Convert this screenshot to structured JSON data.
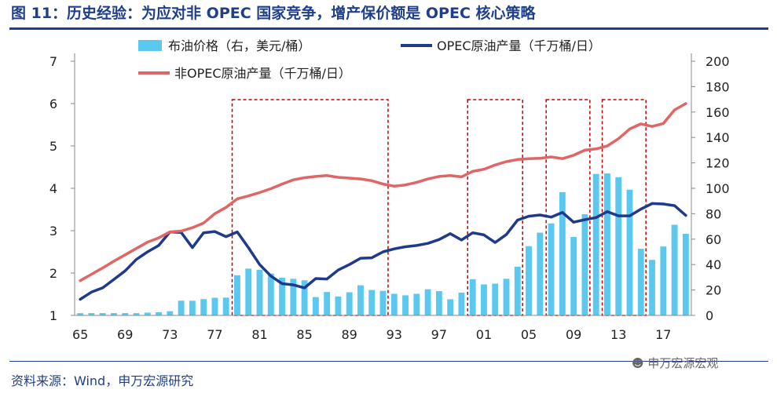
{
  "title": "图 11：历史经验：为应对非 OPEC 国家竞争，增产保价额是 OPEC 核心策略",
  "source": "资料来源：Wind，申万宏源研究",
  "watermark": "申万宏源宏观",
  "chart_data": {
    "type": "bar+line",
    "x": [
      1965,
      1966,
      1967,
      1968,
      1969,
      1970,
      1971,
      1972,
      1973,
      1974,
      1975,
      1976,
      1977,
      1978,
      1979,
      1980,
      1981,
      1982,
      1983,
      1984,
      1985,
      1986,
      1987,
      1988,
      1989,
      1990,
      1991,
      1992,
      1993,
      1994,
      1995,
      1996,
      1997,
      1998,
      1999,
      2000,
      2001,
      2002,
      2003,
      2004,
      2005,
      2006,
      2007,
      2008,
      2009,
      2010,
      2011,
      2012,
      2013,
      2014,
      2015,
      2016,
      2017,
      2018,
      2019
    ],
    "x_tick_labels": [
      "65",
      "69",
      "73",
      "77",
      "81",
      "85",
      "89",
      "93",
      "97",
      "01",
      "05",
      "09",
      "13",
      "17"
    ],
    "left_axis": {
      "min": 1,
      "max": 7,
      "ticks": [
        "1",
        "2",
        "3",
        "4",
        "5",
        "6",
        "7"
      ]
    },
    "right_axis": {
      "min": 0,
      "max": 200,
      "ticks": [
        "0",
        "20",
        "40",
        "60",
        "80",
        "100",
        "120",
        "140",
        "160",
        "180",
        "200"
      ]
    },
    "series": [
      {
        "name": "布油价格（右，美元/桶）",
        "type": "bar",
        "axis": "right",
        "color": "#5bc8f0",
        "values": [
          1.8,
          1.8,
          1.8,
          1.8,
          1.8,
          1.8,
          2.2,
          2.5,
          3.3,
          11.6,
          11.5,
          12.8,
          13.9,
          14.0,
          31.6,
          36.8,
          35.9,
          32.9,
          29.6,
          28.8,
          27.6,
          14.4,
          18.4,
          14.9,
          18.2,
          23.7,
          20.0,
          19.3,
          17.0,
          15.8,
          17.0,
          20.6,
          19.1,
          12.7,
          17.9,
          28.5,
          24.4,
          25.0,
          28.8,
          38.3,
          54.5,
          65.1,
          72.4,
          97.0,
          61.7,
          79.6,
          111.3,
          111.7,
          108.7,
          98.9,
          52.4,
          43.7,
          54.2,
          71.3,
          64.2
        ]
      },
      {
        "name": "OPEC原油产量（千万桶/日）",
        "type": "line",
        "axis": "left",
        "color": "#1f3a8c",
        "values": [
          1.38,
          1.55,
          1.65,
          1.85,
          2.05,
          2.32,
          2.5,
          2.65,
          2.97,
          2.96,
          2.6,
          2.95,
          2.98,
          2.86,
          2.97,
          2.6,
          2.2,
          1.93,
          1.75,
          1.72,
          1.65,
          1.87,
          1.86,
          2.07,
          2.2,
          2.35,
          2.36,
          2.5,
          2.57,
          2.62,
          2.65,
          2.7,
          2.79,
          2.93,
          2.78,
          2.95,
          2.9,
          2.72,
          2.91,
          3.25,
          3.34,
          3.37,
          3.32,
          3.43,
          3.2,
          3.26,
          3.31,
          3.45,
          3.35,
          3.35,
          3.51,
          3.64,
          3.63,
          3.59,
          3.36
        ]
      },
      {
        "name": "非OPEC原油产量（千万桶/日）",
        "type": "line",
        "axis": "left",
        "color": "#e06666",
        "values": [
          1.82,
          1.97,
          2.12,
          2.28,
          2.43,
          2.58,
          2.73,
          2.83,
          2.97,
          2.99,
          3.07,
          3.18,
          3.4,
          3.55,
          3.75,
          3.82,
          3.9,
          3.99,
          4.1,
          4.2,
          4.25,
          4.28,
          4.3,
          4.26,
          4.24,
          4.22,
          4.18,
          4.1,
          4.05,
          4.08,
          4.14,
          4.22,
          4.28,
          4.3,
          4.27,
          4.4,
          4.45,
          4.55,
          4.63,
          4.68,
          4.7,
          4.71,
          4.74,
          4.7,
          4.78,
          4.9,
          4.93,
          5.0,
          5.17,
          5.4,
          5.52,
          5.46,
          5.53,
          5.85,
          6.0
        ]
      }
    ],
    "highlight_periods": [
      [
        1979,
        1992
      ],
      [
        2000,
        2004
      ],
      [
        2007,
        2010
      ],
      [
        2012,
        2015
      ]
    ],
    "grid": false,
    "legend_position": "top"
  }
}
